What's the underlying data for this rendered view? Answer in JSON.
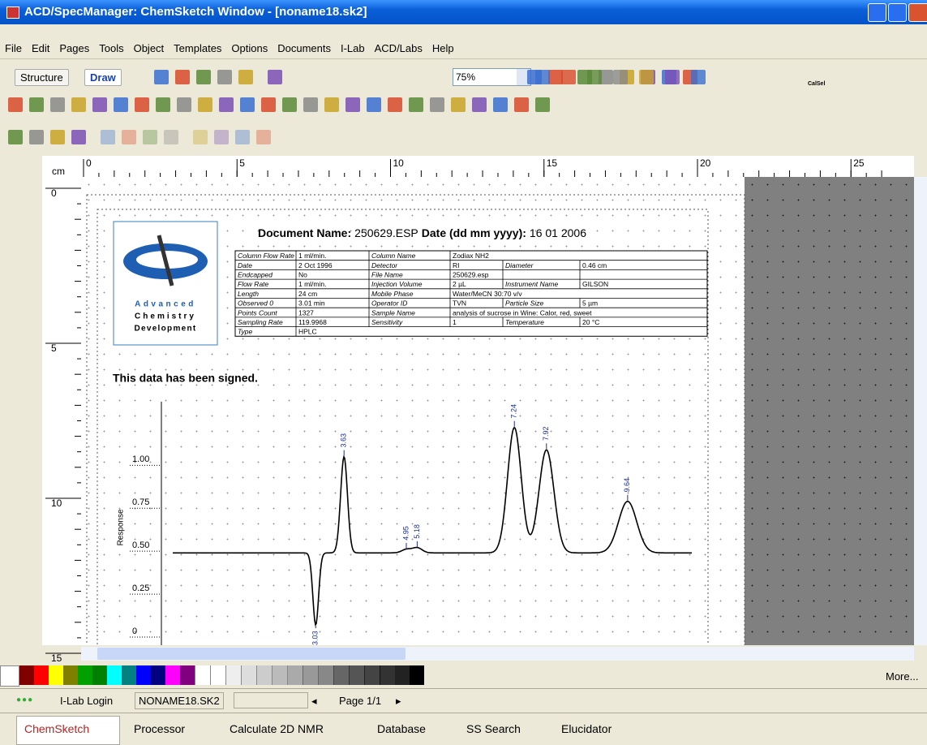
{
  "window": {
    "title": "ACD/SpecManager: ChemSketch Window - [noname18.sk2]"
  },
  "menu": [
    "File",
    "Edit",
    "Pages",
    "Tools",
    "Object",
    "Templates",
    "Options",
    "Documents",
    "I-Lab",
    "ACD/Labs",
    "Help"
  ],
  "toolbar": {
    "structure": "Structure",
    "draw": "Draw",
    "zoom": "75%",
    "calsel": "CalSel"
  },
  "ruler": {
    "unit": "cm",
    "h": [
      0,
      5,
      10,
      15,
      20,
      25
    ],
    "v": [
      0,
      5,
      10,
      15
    ]
  },
  "document": {
    "name_label": "Document Name:",
    "name": "250629.ESP",
    "date_label": "Date (dd mm yyyy):",
    "date": "16 01 2006",
    "logo": [
      "Advanced",
      "Chemistry",
      "Development"
    ],
    "table": [
      [
        "Column Flow Rate",
        "1 ml/min.",
        "Column Name",
        "Zodiax NH2"
      ],
      [
        "Date",
        "2 Oct 1996",
        "Detector",
        "RI",
        "Diameter",
        "0.46 cm"
      ],
      [
        "Endcapped",
        "No",
        "File Name",
        "250629.esp",
        "",
        ""
      ],
      [
        "Flow Rate",
        "1 ml/min.",
        "Injection Volume",
        "2 µL",
        "Instrument Name",
        "GILSON"
      ],
      [
        "Length",
        "24 cm",
        "Mobile Phase",
        "Water/MeCN 30:70 v/v"
      ],
      [
        "Observed 0",
        "3.01 min",
        "Operator ID",
        "TVN",
        "Particle Size",
        "5 µm"
      ],
      [
        "Points Count",
        "1327",
        "Sample Name",
        "analysis of sucrose in Wine: Calor, red, sweet"
      ],
      [
        "Sampling Rate",
        "119.9968",
        "Sensitivity",
        "1",
        "Temperature",
        "20 °C"
      ],
      [
        "Type",
        "HPLC"
      ]
    ],
    "signed": "This data has been signed.",
    "chromatogram": {
      "type": "line",
      "y_label": "Response",
      "xlim": [
        0,
        11
      ],
      "ylim": [
        0,
        1.37
      ],
      "yticks": [
        0,
        0.25,
        {
          "value": 0.5,
          "label": "0.50"
        },
        0.75,
        {
          "value": 1,
          "label": "1.00"
        }
      ],
      "baseline": 0.49,
      "color": "#000000",
      "peaks": {
        "x": [
          3.03,
          3.63,
          4.95,
          5.18,
          7.24,
          7.92,
          9.64
        ],
        "values": [
          0.07,
          1.05,
          0.51,
          0.52,
          1.22,
          1.09,
          0.79
        ]
      }
    }
  },
  "palette": {
    "more": "More..."
  },
  "status": {
    "login": "I-Lab Login",
    "file": "NONAME18.SK2",
    "page": "Page 1/1"
  },
  "tabs": [
    "ChemSketch",
    "Processor",
    "Calculate 2D NMR",
    "Database",
    "SS Search",
    "Elucidator"
  ]
}
